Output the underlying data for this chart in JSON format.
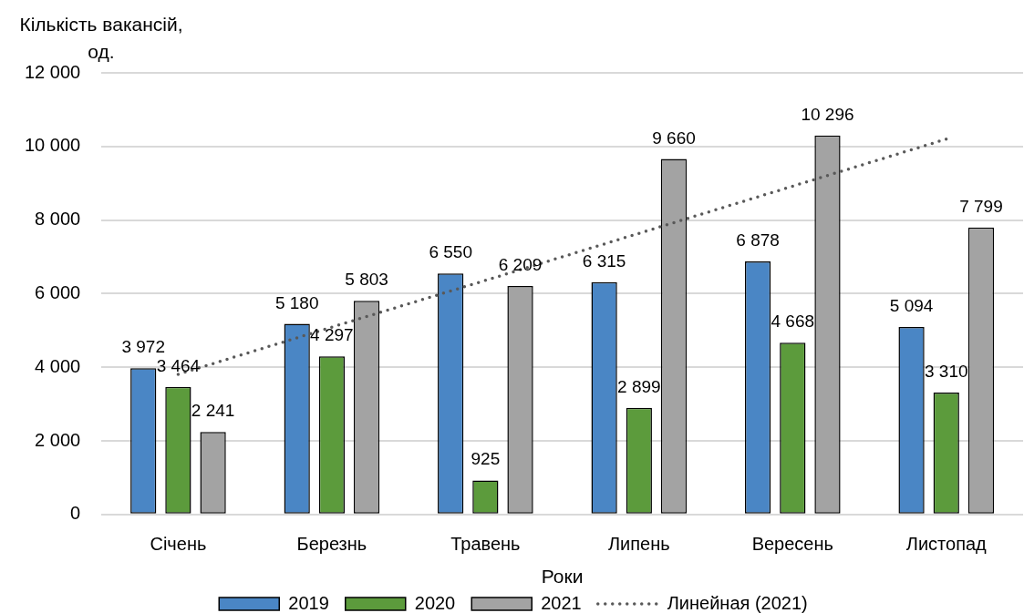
{
  "chart_data": {
    "type": "bar",
    "categories": [
      "Січень",
      "Березнь",
      "Травень",
      "Липень",
      "Вересень",
      "Листопад"
    ],
    "xlabel": "Роки",
    "ylabel": "Кількість вакансій, од.",
    "series": [
      {
        "name": "2019",
        "color": "#4a86c5",
        "values": [
          3972,
          5180,
          6550,
          6315,
          6878,
          5094
        ],
        "value_labels": [
          "3 972",
          "5 180",
          "6 550",
          "6 315",
          "6 878",
          "5 094"
        ]
      },
      {
        "name": "2020",
        "color": "#5c9b3c",
        "values": [
          3464,
          4297,
          925,
          2899,
          4668,
          3310
        ],
        "value_labels": [
          "3 464",
          "4 297",
          "925",
          "2 899",
          "4 668",
          "3 310"
        ]
      },
      {
        "name": "2021",
        "color": "#a3a3a3",
        "values": [
          2241,
          5803,
          6209,
          9660,
          10296,
          7799
        ],
        "value_labels": [
          "2 241",
          "5 803",
          "6 209",
          "9 660",
          "10 296",
          "7 799"
        ]
      },
      {
        "name": "Линейная (2021)",
        "type": "line",
        "color": "#595959",
        "values": [
          3810,
          5090,
          6360,
          7640,
          8920,
          10200
        ],
        "line_style": "dotted",
        "marker": "none"
      }
    ],
    "ylim": [
      0,
      12000
    ],
    "yticks": [
      0,
      {
        "value": 2000,
        "label": "2 000"
      },
      {
        "value": 4000,
        "label": "4 000"
      },
      {
        "value": 6000,
        "label": "6 000"
      },
      {
        "value": 8000,
        "label": "8 000"
      },
      {
        "value": 10000,
        "label": "10 000"
      },
      {
        "value": 12000,
        "label": "12 000"
      }
    ],
    "grid": "y",
    "legend": "bottom"
  }
}
